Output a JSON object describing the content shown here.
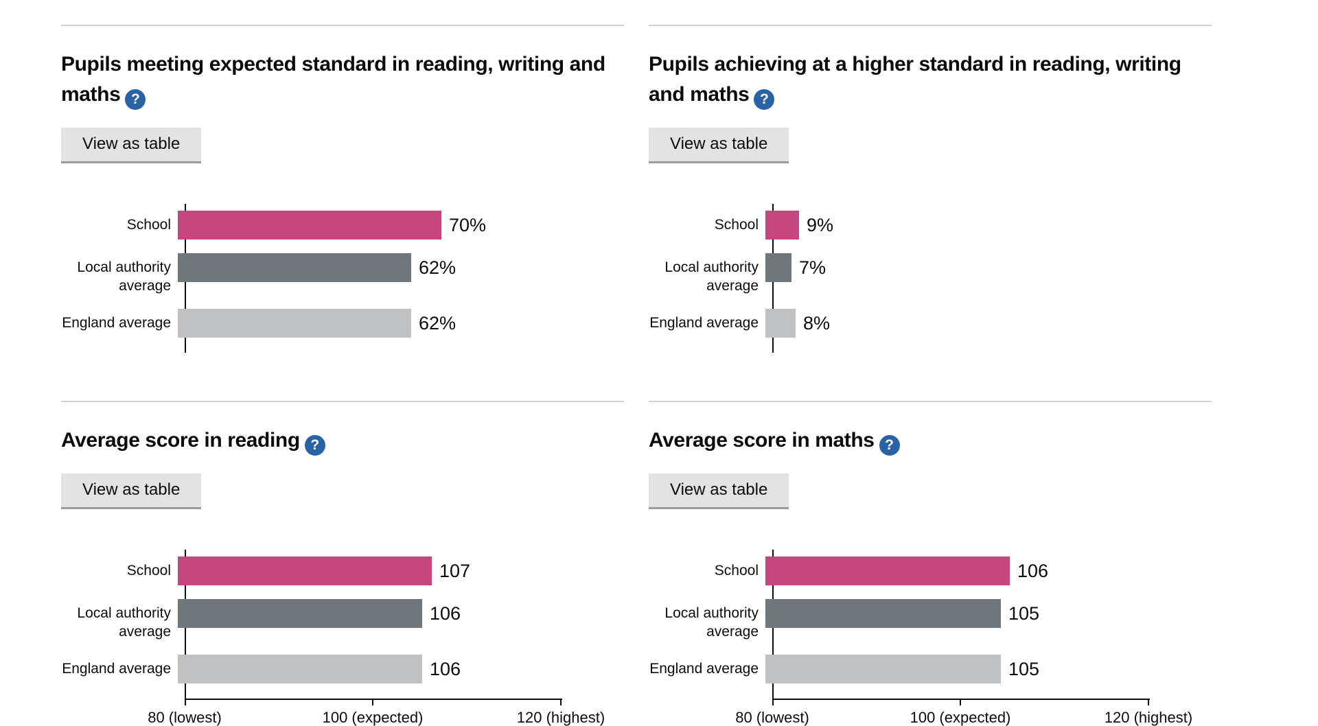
{
  "page": {
    "background": "#ffffff"
  },
  "colors": {
    "bar_school": "#c5477d",
    "bar_local_authority": "#6f777b",
    "bar_england": "#bfc1c3",
    "axis": "#0b0c0c",
    "text": "#0b0c0c",
    "divider": "#d2d2d2",
    "help_icon_bg": "#2962a5",
    "help_icon_glyph_color": "#ffffff",
    "button_bg": "#e3e3e3",
    "button_shadow": "#9b9b9b",
    "button_text": "#0b0c0c"
  },
  "controls": {
    "view_as_table_label": "View as table",
    "help_icon_glyph": "?"
  },
  "chart_data": [
    {
      "type": "bar",
      "orientation": "horizontal",
      "title": "Pupils meeting expected standard in reading, writing and maths",
      "categories": [
        "School",
        "Local authority average",
        "England average"
      ],
      "values": [
        70,
        62,
        62
      ],
      "value_labels": [
        "70%",
        "62%",
        "62%"
      ],
      "bar_colors": [
        "bar_school",
        "bar_local_authority",
        "bar_england"
      ],
      "xlim": [
        0,
        100
      ],
      "x_ticks": [],
      "grid": false,
      "legend": false
    },
    {
      "type": "bar",
      "orientation": "horizontal",
      "title": "Pupils achieving at a higher standard in reading, writing and maths",
      "categories": [
        "School",
        "Local authority average",
        "England average"
      ],
      "values": [
        9,
        7,
        8
      ],
      "value_labels": [
        "9%",
        "7%",
        "8%"
      ],
      "bar_colors": [
        "bar_school",
        "bar_local_authority",
        "bar_england"
      ],
      "xlim": [
        0,
        100
      ],
      "x_ticks": [],
      "grid": false,
      "legend": false
    },
    {
      "type": "bar",
      "orientation": "horizontal",
      "title": "Average score in reading",
      "categories": [
        "School",
        "Local authority average",
        "England average"
      ],
      "values": [
        107,
        106,
        106
      ],
      "value_labels": [
        "107",
        "106",
        "106"
      ],
      "bar_colors": [
        "bar_school",
        "bar_local_authority",
        "bar_england"
      ],
      "xlim": [
        80,
        120
      ],
      "x_ticks": [
        {
          "value": 80,
          "label": "80 (lowest)"
        },
        {
          "value": 100,
          "label": "100 (expected)"
        },
        {
          "value": 120,
          "label": "120 (highest)"
        }
      ],
      "grid": false,
      "legend": false
    },
    {
      "type": "bar",
      "orientation": "horizontal",
      "title": "Average score in maths",
      "categories": [
        "School",
        "Local authority average",
        "England average"
      ],
      "values": [
        106,
        105,
        105
      ],
      "value_labels": [
        "106",
        "105",
        "105"
      ],
      "bar_colors": [
        "bar_school",
        "bar_local_authority",
        "bar_england"
      ],
      "xlim": [
        80,
        120
      ],
      "x_ticks": [
        {
          "value": 80,
          "label": "80 (lowest)"
        },
        {
          "value": 100,
          "label": "100 (expected)"
        },
        {
          "value": 120,
          "label": "120 (highest)"
        }
      ],
      "grid": false,
      "legend": false
    }
  ]
}
